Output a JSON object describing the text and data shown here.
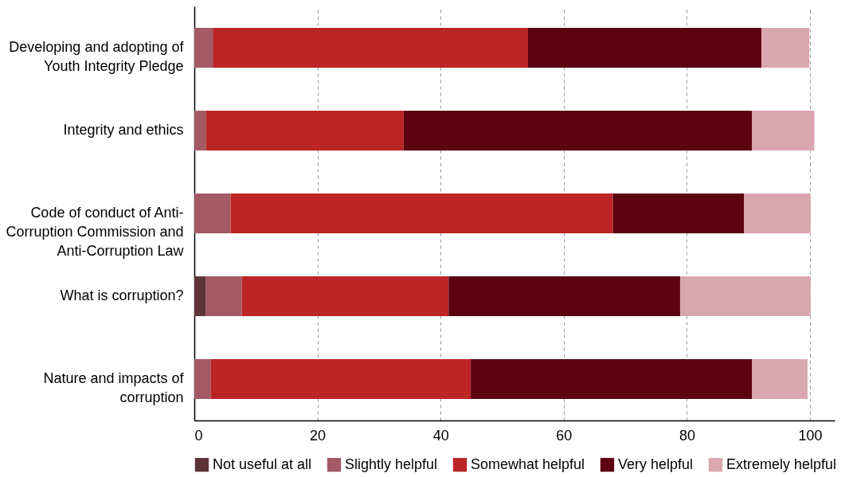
{
  "chart_data": {
    "type": "bar",
    "orientation": "horizontal",
    "stacked": true,
    "categories": [
      "Developing and adopting of Youth Integrity Pledge",
      "Integrity and ethics",
      "Code of conduct of Anti-Corruption Commission and Anti-Corruption Law",
      "What is corruption?",
      "Nature and impacts of corruption"
    ],
    "series": [
      {
        "name": "Not useful at all",
        "color": "#5e3338",
        "values": [
          0,
          0,
          0,
          1.9,
          0
        ]
      },
      {
        "name": "Slightly helpful",
        "color": "#a35a64",
        "values": [
          3.0,
          1.9,
          5.9,
          5.8,
          2.7
        ]
      },
      {
        "name": "Somewhat helpful",
        "color": "#bb2526",
        "values": [
          51.2,
          32.1,
          62.1,
          33.6,
          42.2
        ]
      },
      {
        "name": "Very helpful",
        "color": "#5c0210",
        "values": [
          37.9,
          56.6,
          21.3,
          37.6,
          45.7
        ]
      },
      {
        "name": "Extremely helpful",
        "color": "#d9a7ae",
        "values": [
          7.8,
          10.1,
          10.8,
          21.2,
          9.0
        ]
      }
    ],
    "xlim": [
      0,
      104
    ],
    "xticks": [
      0,
      20,
      40,
      60,
      80,
      100
    ],
    "grid": "x",
    "legend": "bottom"
  }
}
